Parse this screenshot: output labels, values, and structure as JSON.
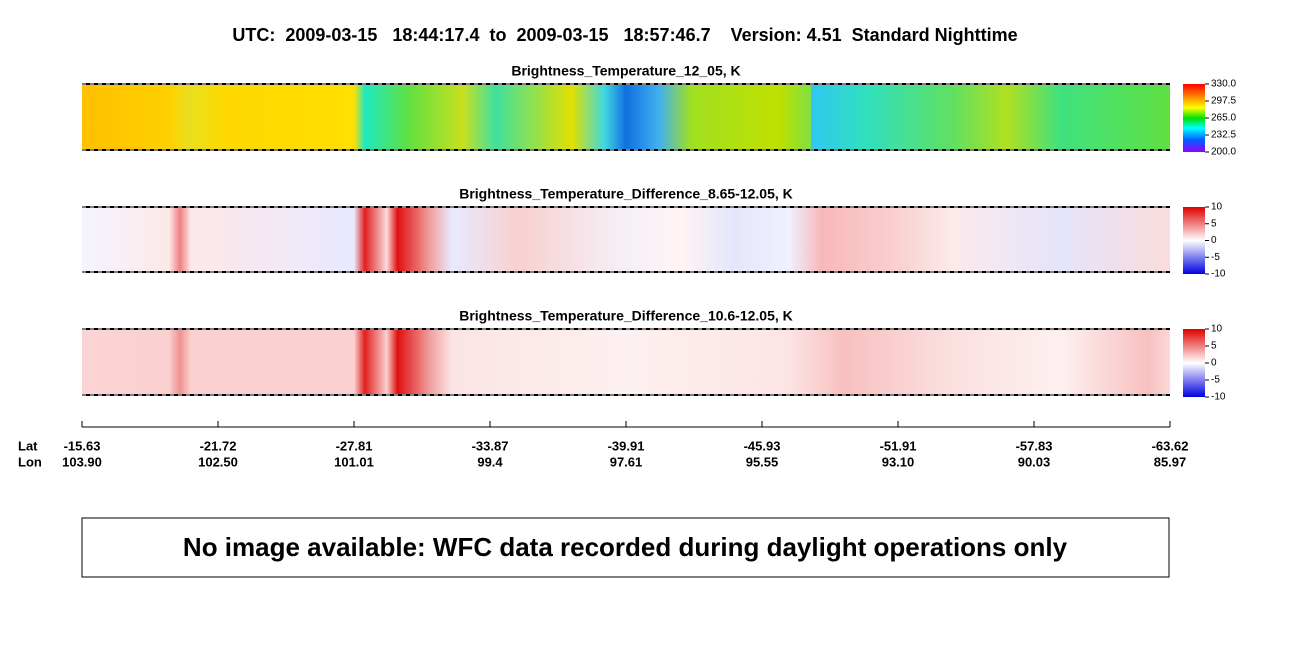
{
  "title": "UTC:  2009-03-15   18:44:17.4  to  2009-03-15   18:57:46.7    Version: 4.51  Standard Nighttime",
  "chart_data": [
    {
      "type": "heatmap",
      "title": "Brightness_Temperature_12_05, K",
      "colorbar_lim": [
        200,
        330
      ],
      "colorbar_ticks": [
        {
          "value": 330,
          "label": "330.0"
        },
        {
          "value": 297.5,
          "label": "297.5"
        },
        {
          "value": 265,
          "label": "265.0"
        },
        {
          "value": 232.5,
          "label": "232.5"
        },
        {
          "value": 200,
          "label": "200.0"
        }
      ]
    },
    {
      "type": "heatmap",
      "title": "Brightness_Temperature_Difference_8.65-12.05, K",
      "colorbar_lim": [
        -10,
        10
      ],
      "colorbar_ticks": [
        10,
        5,
        0,
        -5,
        -10
      ]
    },
    {
      "type": "heatmap",
      "title": "Brightness_Temperature_Difference_10.6-12.05, K",
      "colorbar_lim": [
        -10,
        10
      ],
      "colorbar_ticks": [
        10,
        5,
        0,
        -5,
        -10
      ]
    }
  ],
  "location_axis": {
    "row_labels": [
      "Lat",
      "Lon"
    ],
    "lat": [
      -15.63,
      -21.72,
      -27.81,
      -33.87,
      -39.91,
      -45.93,
      -51.91,
      -57.83,
      -63.62
    ],
    "lon": [
      {
        "value": 103.9,
        "label": "103.90"
      },
      {
        "value": 102.5,
        "label": "102.50"
      },
      101.01,
      99.4,
      97.61,
      95.55,
      {
        "value": 93.1,
        "label": "93.10"
      },
      90.03,
      85.97
    ]
  },
  "message": "No image available: WFC data recorded during daylight operations only"
}
